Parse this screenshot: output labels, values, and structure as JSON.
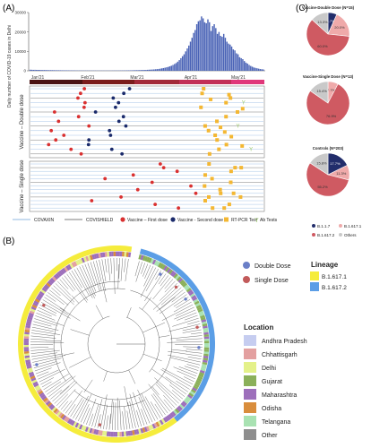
{
  "panel_labels": {
    "a": "(A)",
    "b": "(B)",
    "c": "(C)"
  },
  "colors": {
    "bar": "#4a63b6",
    "covaxin": "#a7c6e8",
    "covishield": "#7d7d7d",
    "dose1": "#d93030",
    "dose2": "#1a2a6b",
    "rtpcr": "#f3b733",
    "abtest": "#9bc96a",
    "pie_dark": "#222d6b",
    "pie_light_red": "#efaaaa",
    "pie_red": "#cf5a62",
    "pie_gray": "#c9c9c9",
    "lineage_b16171": "#f5ec3c",
    "lineage_b16172": "#5b9ee6",
    "double_dose": "#6a7fc7",
    "single_dose": "#c25a5a",
    "timeline": [
      "#4a1212",
      "#7a1c1c",
      "#a22a3a",
      "#c22f57",
      "#e0377a"
    ]
  },
  "chart_data": [
    {
      "type": "bar",
      "panel": "A-top",
      "ylabel": "Daily number of COVID-19 cases in Delhi",
      "yticks": [
        "0",
        "10000",
        "20000",
        "30000"
      ],
      "ylim": [
        0,
        30000
      ],
      "xticks": [
        "Jan'21",
        "Feb'21",
        "Mar'21",
        "Apr'21",
        "May'21"
      ],
      "series": [
        {
          "values": [
            550,
            520,
            480,
            500,
            470,
            450,
            430,
            410,
            400,
            380,
            360,
            350,
            340,
            330,
            320,
            300,
            290,
            280,
            270,
            260,
            250,
            240,
            230,
            220,
            210,
            200,
            190,
            180,
            170,
            160,
            150,
            145,
            140,
            135,
            130,
            128,
            125,
            122,
            120,
            118,
            115,
            112,
            110,
            108,
            106,
            104,
            102,
            100,
            100,
            102,
            105,
            110,
            115,
            120,
            125,
            130,
            140,
            150,
            160,
            170,
            180,
            200,
            220,
            240,
            260,
            280,
            300,
            320,
            340,
            360,
            380,
            400,
            430,
            460,
            500,
            550,
            600,
            650,
            700,
            780,
            850,
            950,
            1100,
            1250,
            1400,
            1600,
            1800,
            2000,
            2300,
            2600,
            3000,
            3500,
            4000,
            4700,
            5500,
            6500,
            7500,
            8500,
            10000,
            11500,
            13000,
            15000,
            17000,
            19500,
            21000,
            24000,
            25500,
            26000,
            28000,
            27000,
            25000,
            24500,
            26500,
            25000,
            20500,
            23000,
            24000,
            22000,
            19000,
            20000,
            18000,
            17500,
            19000,
            17000,
            15000,
            14000,
            13500,
            12500,
            11000,
            10500,
            9000,
            8500,
            7000,
            6500,
            6000,
            5000,
            4200,
            3700,
            3000,
            2500,
            2100,
            1700,
            1500,
            1300,
            1100,
            900,
            800,
            700
          ]
        }
      ]
    },
    {
      "type": "scatter",
      "panel": "A-timeline",
      "xticks": [
        "Jan'21",
        "Feb'21",
        "Mar'21",
        "Apr'21",
        "May'21"
      ],
      "ylabel_top": "Vaccine – Double dose",
      "ylabel_bottom": "Vaccine – Single dose",
      "legend": [
        "COVAXIN",
        "COVISHIELD",
        "Vaccine – First dose",
        "Vaccine - Second dose",
        "RT-PCR Test",
        "Ab Tests"
      ]
    },
    {
      "type": "pie",
      "panel": "C",
      "pies": [
        {
          "title": "Vaccine-Double Dose (N=15)",
          "slices": [
            {
              "label": "B.1.1.7",
              "value": 6.7,
              "text": "6.7%"
            },
            {
              "label": "B.1.617.1",
              "value": 20.0,
              "text": "20.0%"
            },
            {
              "label": "B.1.617.2",
              "value": 60.0,
              "text": "60.0%"
            },
            {
              "label": "Others",
              "value": 13.3,
              "text": "13.3%"
            }
          ]
        },
        {
          "title": "Vaccine-Single Dose (N=13)",
          "slices": [
            {
              "label": "B.1.1.7",
              "value": 0,
              "text": ""
            },
            {
              "label": "B.1.617.1",
              "value": 7.7,
              "text": "7.7%"
            },
            {
              "label": "B.1.617.2",
              "value": 76.9,
              "text": "76.9%"
            },
            {
              "label": "Others",
              "value": 15.4,
              "text": "15.4%"
            }
          ]
        },
        {
          "title": "Controls (N=203)",
          "slices": [
            {
              "label": "B.1.1.7",
              "value": 17.7,
              "text": "17.7%"
            },
            {
              "label": "B.1.617.1",
              "value": 11.3,
              "text": "11.3%"
            },
            {
              "label": "B.1.617.2",
              "value": 55.2,
              "text": "55.2%"
            },
            {
              "label": "Others",
              "value": 15.8,
              "text": "15.8%"
            }
          ]
        }
      ],
      "legend": [
        "B.1.1.7",
        "B.1.617.1",
        "B.1.617.2",
        "Others"
      ]
    }
  ],
  "tree_legend": {
    "dose": [
      {
        "label": "Double Dose"
      },
      {
        "label": "Single Dose"
      }
    ],
    "lineage_title": "Lineage",
    "lineages": [
      {
        "label": "B.1.617.1"
      },
      {
        "label": "B.1.617.2"
      }
    ],
    "location_title": "Location",
    "locations": [
      {
        "label": "Andhra Pradesh",
        "color": "#c6cdf0"
      },
      {
        "label": "Chhattisgarh",
        "color": "#e3a0a0"
      },
      {
        "label": "Delhi",
        "color": "#e4f189"
      },
      {
        "label": "Gujarat",
        "color": "#8bb05a"
      },
      {
        "label": "Maharashtra",
        "color": "#9d6fbb"
      },
      {
        "label": "Odisha",
        "color": "#d98d3c"
      },
      {
        "label": "Telangana",
        "color": "#a9e2b2"
      },
      {
        "label": "Other",
        "color": "#8e8e8e"
      }
    ]
  }
}
